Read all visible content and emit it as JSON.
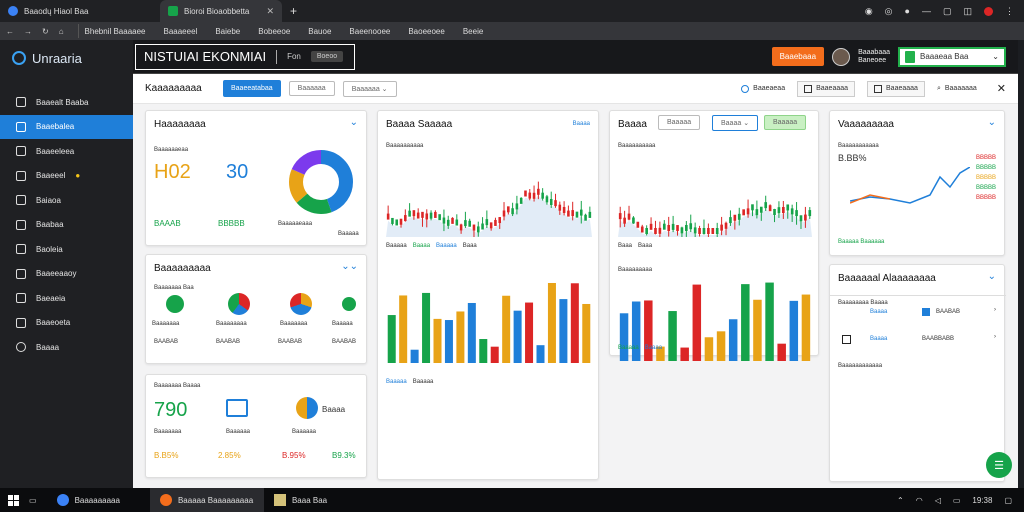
{
  "browser": {
    "tabs": [
      {
        "label": "Baaodų Hiaol Baa"
      },
      {
        "label": "Bioroi Bioaobbetta"
      }
    ],
    "bookmarks": [
      "Bhebnil Baaaaee",
      "Baaaeeel",
      "Baiebe",
      "Bobeeoe",
      "Bauoe",
      "Baeenooee",
      "Baoeeoee",
      "Beeie"
    ]
  },
  "sidebar": {
    "brand": "Unraaria",
    "items": [
      {
        "label": "Baaealt Baaba"
      },
      {
        "label": "Baaebalea"
      },
      {
        "label": "Baaeeleea"
      },
      {
        "label": "Baaeeel"
      },
      {
        "label": "Baiaoa"
      },
      {
        "label": "Baabaa"
      },
      {
        "label": "Baoleia"
      },
      {
        "label": "Baaeeaaoy"
      },
      {
        "label": "Baeaeia"
      },
      {
        "label": "Baaeoeta"
      },
      {
        "label": "Baaaa"
      }
    ]
  },
  "header": {
    "title": "NISTUIAI EKONMIAI",
    "filter": "Fon",
    "pill": "Boeoo",
    "action_button": "Baaebaaa",
    "user_name_line1": "Baaabaaa",
    "user_name_line2": "Baneoee",
    "account_select": "Baaaeaa Baa"
  },
  "toolbar": {
    "title": "Kaaaaaaaaa",
    "primary_button": "Baaeeatabaa",
    "btn2": "Baaaaaa",
    "btn3": "Baaaaaa",
    "link1": "Baaeaeaa",
    "link2": "Baaeaaaa",
    "link3": "Baaeaaaa",
    "link4": "Baaaaaaa"
  },
  "cards": {
    "overview": {
      "title": "Haaaaaaaa",
      "sub": "Baaaaaaeaa",
      "v1": "H02",
      "v2": "30",
      "s1": "BAAAB",
      "s2": "BBBBB",
      "s3": "Baaaaaeaaa",
      "s4": "Baaaaa"
    },
    "conversion": {
      "title": "Baaaaaaaaa",
      "sub": "Baaaaaaa Baa",
      "labels": [
        "Baaaaaaa",
        "Baaaaaaaa",
        "Baaaaaaa",
        "Baaaaa"
      ],
      "nums": [
        "BAABAB",
        "BAABAB",
        "BAABAB",
        "BAABAB"
      ]
    },
    "kpi": {
      "sub": "Baaaaaaa Baaaa",
      "v1": "790",
      "v2": "Baaaa",
      "labels": [
        "Baaaaaaa",
        "Baaaaaa",
        "Baaaaaa"
      ],
      "pct": [
        "B.B5%",
        "2.85%",
        "B.95%",
        "B9.3%"
      ]
    },
    "market1": {
      "title": "Baaaa Saaaaa",
      "link": "Baaaa",
      "sub": "Baaaaaaaaaa",
      "legend": [
        "Baaaaa",
        "Baaaa",
        "Baaaaa",
        "Baaa",
        "Baaa",
        "Baaa"
      ]
    },
    "market2": {
      "title": "Baaaa",
      "filter": "Baaaaa",
      "select": "Baaaa",
      "btn": "Baaaaa",
      "sub": "Baaaaaaaaaa"
    },
    "market3": {
      "sub": "Baaaaaaaaa",
      "legend": [
        "Baaaaa",
        "Baaaaa",
        "Baaaa"
      ]
    },
    "market4": {
      "sub": "Baaaaaaaaa",
      "legend": [
        "Baaaaa",
        "Baaaa",
        "Baaaa"
      ]
    },
    "trend": {
      "title": "Vaaaaaaaaa",
      "sub": "Baaaaaaaaaaa",
      "kpi": "B.BB%",
      "footer": "Baaaaa Baaaaaa",
      "right": [
        "BBBBB",
        "BBBBB",
        "BBBBB",
        "BBBBB",
        "BBBBB"
      ]
    },
    "alerts": {
      "title": "Baaaaaal Alaaaaaaaa",
      "sub": "Baaaaaaaa Baaaa",
      "rows": [
        {
          "a": "Baaaa",
          "b": "BAABAB"
        },
        {
          "a": "Baaaa",
          "b": "BAABBABB"
        }
      ],
      "footer": "Baaaaaaaaaaaa"
    }
  },
  "taskbar": {
    "items": [
      "Baaaaaaaaa",
      "Baaaaa Baaaaaaaaa",
      "Baaa Baa"
    ],
    "clock": "19:38"
  }
}
